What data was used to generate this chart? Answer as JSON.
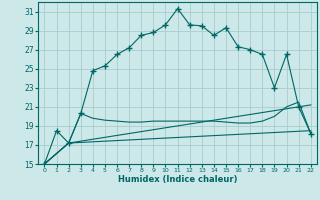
{
  "title": "",
  "xlabel": "Humidex (Indice chaleur)",
  "background_color": "#cce8e8",
  "grid_color": "#aacccc",
  "line_color": "#006666",
  "xlim": [
    -0.5,
    22.5
  ],
  "ylim": [
    15,
    32
  ],
  "xticks": [
    0,
    1,
    2,
    3,
    4,
    5,
    6,
    7,
    8,
    9,
    10,
    11,
    12,
    13,
    14,
    15,
    16,
    17,
    18,
    19,
    20,
    21,
    22
  ],
  "yticks": [
    15,
    17,
    19,
    21,
    23,
    25,
    27,
    29,
    31
  ],
  "series_main": [
    [
      0,
      15.0
    ],
    [
      1,
      18.5
    ],
    [
      2,
      17.2
    ],
    [
      3,
      20.3
    ],
    [
      4,
      24.8
    ],
    [
      5,
      25.3
    ],
    [
      6,
      26.5
    ],
    [
      7,
      27.2
    ],
    [
      8,
      28.5
    ],
    [
      9,
      28.8
    ],
    [
      10,
      29.6
    ],
    [
      11,
      31.3
    ],
    [
      12,
      29.6
    ],
    [
      13,
      29.5
    ],
    [
      14,
      28.5
    ],
    [
      15,
      29.3
    ],
    [
      16,
      27.3
    ],
    [
      17,
      27.0
    ],
    [
      18,
      26.5
    ],
    [
      19,
      23.0
    ],
    [
      20,
      26.5
    ],
    [
      21,
      21.0
    ],
    [
      22,
      18.2
    ]
  ],
  "series_line2": [
    [
      0,
      15.0
    ],
    [
      2,
      17.2
    ],
    [
      3,
      20.3
    ],
    [
      4,
      19.8
    ],
    [
      5,
      19.6
    ],
    [
      6,
      19.5
    ],
    [
      7,
      19.4
    ],
    [
      8,
      19.4
    ],
    [
      9,
      19.5
    ],
    [
      10,
      19.5
    ],
    [
      11,
      19.5
    ],
    [
      12,
      19.5
    ],
    [
      13,
      19.5
    ],
    [
      14,
      19.5
    ],
    [
      15,
      19.4
    ],
    [
      16,
      19.3
    ],
    [
      17,
      19.3
    ],
    [
      18,
      19.5
    ],
    [
      19,
      20.0
    ],
    [
      20,
      21.0
    ],
    [
      21,
      21.5
    ],
    [
      22,
      18.2
    ]
  ],
  "series_line3": [
    [
      0,
      15.0
    ],
    [
      2,
      17.2
    ],
    [
      22,
      21.2
    ]
  ],
  "series_line4": [
    [
      0,
      15.0
    ],
    [
      2,
      17.2
    ],
    [
      22,
      18.5
    ]
  ]
}
